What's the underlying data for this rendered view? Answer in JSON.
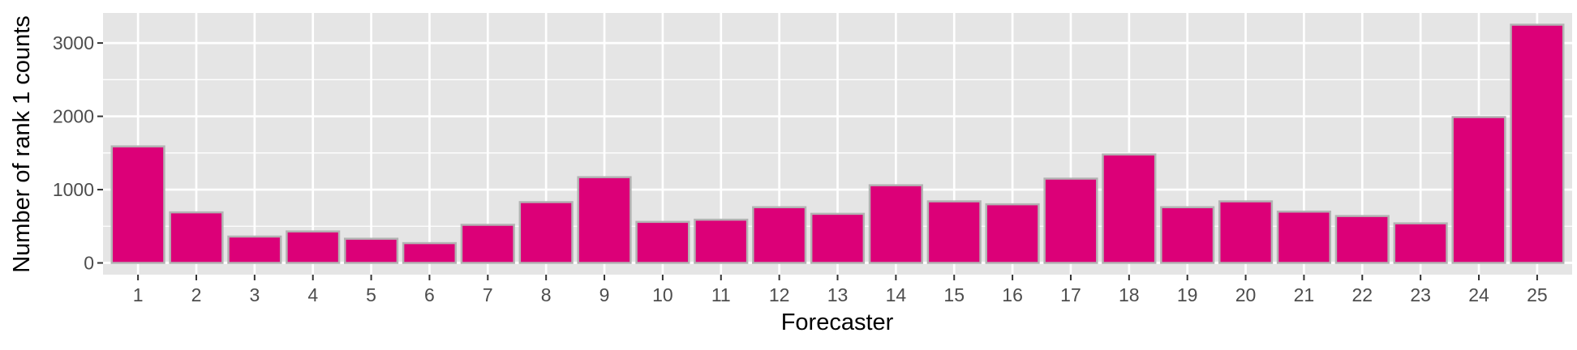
{
  "colors": {
    "panel_background": "#e5e5e5",
    "grid_major": "#ffffff",
    "bar_fill": "#dc0078",
    "bar_outline": "#b3b3b3",
    "tick_text": "#4d4d4d",
    "axis_title_text": "#000000"
  },
  "chart_data": {
    "type": "bar",
    "title": "",
    "xlabel": "Forecaster",
    "ylabel": "Number of rank 1 counts",
    "categories": [
      "1",
      "2",
      "3",
      "4",
      "5",
      "6",
      "7",
      "8",
      "9",
      "10",
      "11",
      "12",
      "13",
      "14",
      "15",
      "16",
      "17",
      "18",
      "19",
      "20",
      "21",
      "22",
      "23",
      "24",
      "25"
    ],
    "values": [
      1590,
      690,
      360,
      430,
      330,
      270,
      520,
      830,
      1170,
      560,
      590,
      760,
      670,
      1060,
      840,
      800,
      1150,
      1480,
      760,
      840,
      700,
      640,
      540,
      1990,
      3250
    ],
    "yticks": [
      0,
      1000,
      2000,
      3000
    ],
    "ylim": [
      -160,
      3410
    ],
    "grid": true,
    "legend": "none"
  }
}
